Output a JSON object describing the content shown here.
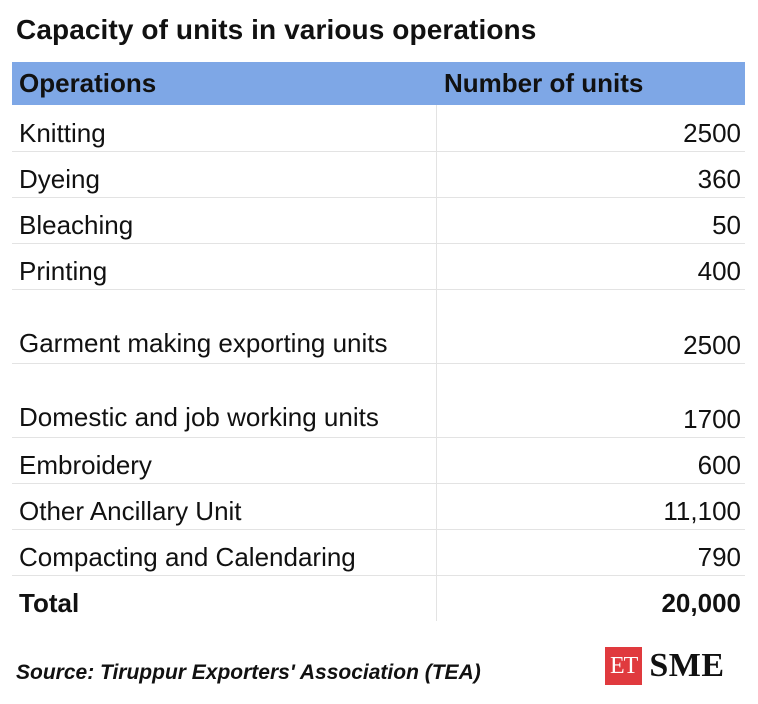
{
  "chart_data": {
    "type": "table",
    "title": "Capacity of units in various operations",
    "columns": [
      "Operations",
      "Number of units"
    ],
    "rows": [
      {
        "operation": "Knitting",
        "units": "2500"
      },
      {
        "operation": "Dyeing",
        "units": "360"
      },
      {
        "operation": "Bleaching",
        "units": "50"
      },
      {
        "operation": "Printing",
        "units": "400"
      },
      {
        "operation": "Garment making exporting units",
        "units": "2500"
      },
      {
        "operation": "Domestic and job working units",
        "units": "1700"
      },
      {
        "operation": "Embroidery",
        "units": "600"
      },
      {
        "operation": "Other Ancillary Unit",
        "units": "11,100"
      },
      {
        "operation": "Compacting and Calendaring",
        "units": "790"
      }
    ],
    "total": {
      "label": "Total",
      "units": "20,000"
    }
  },
  "source": "Source: Tiruppur Exporters' Association (TEA)",
  "logo": {
    "et": "ET",
    "sme": "SME",
    "et_color": "#e03a3e"
  },
  "header_color": "#7ea7e6"
}
